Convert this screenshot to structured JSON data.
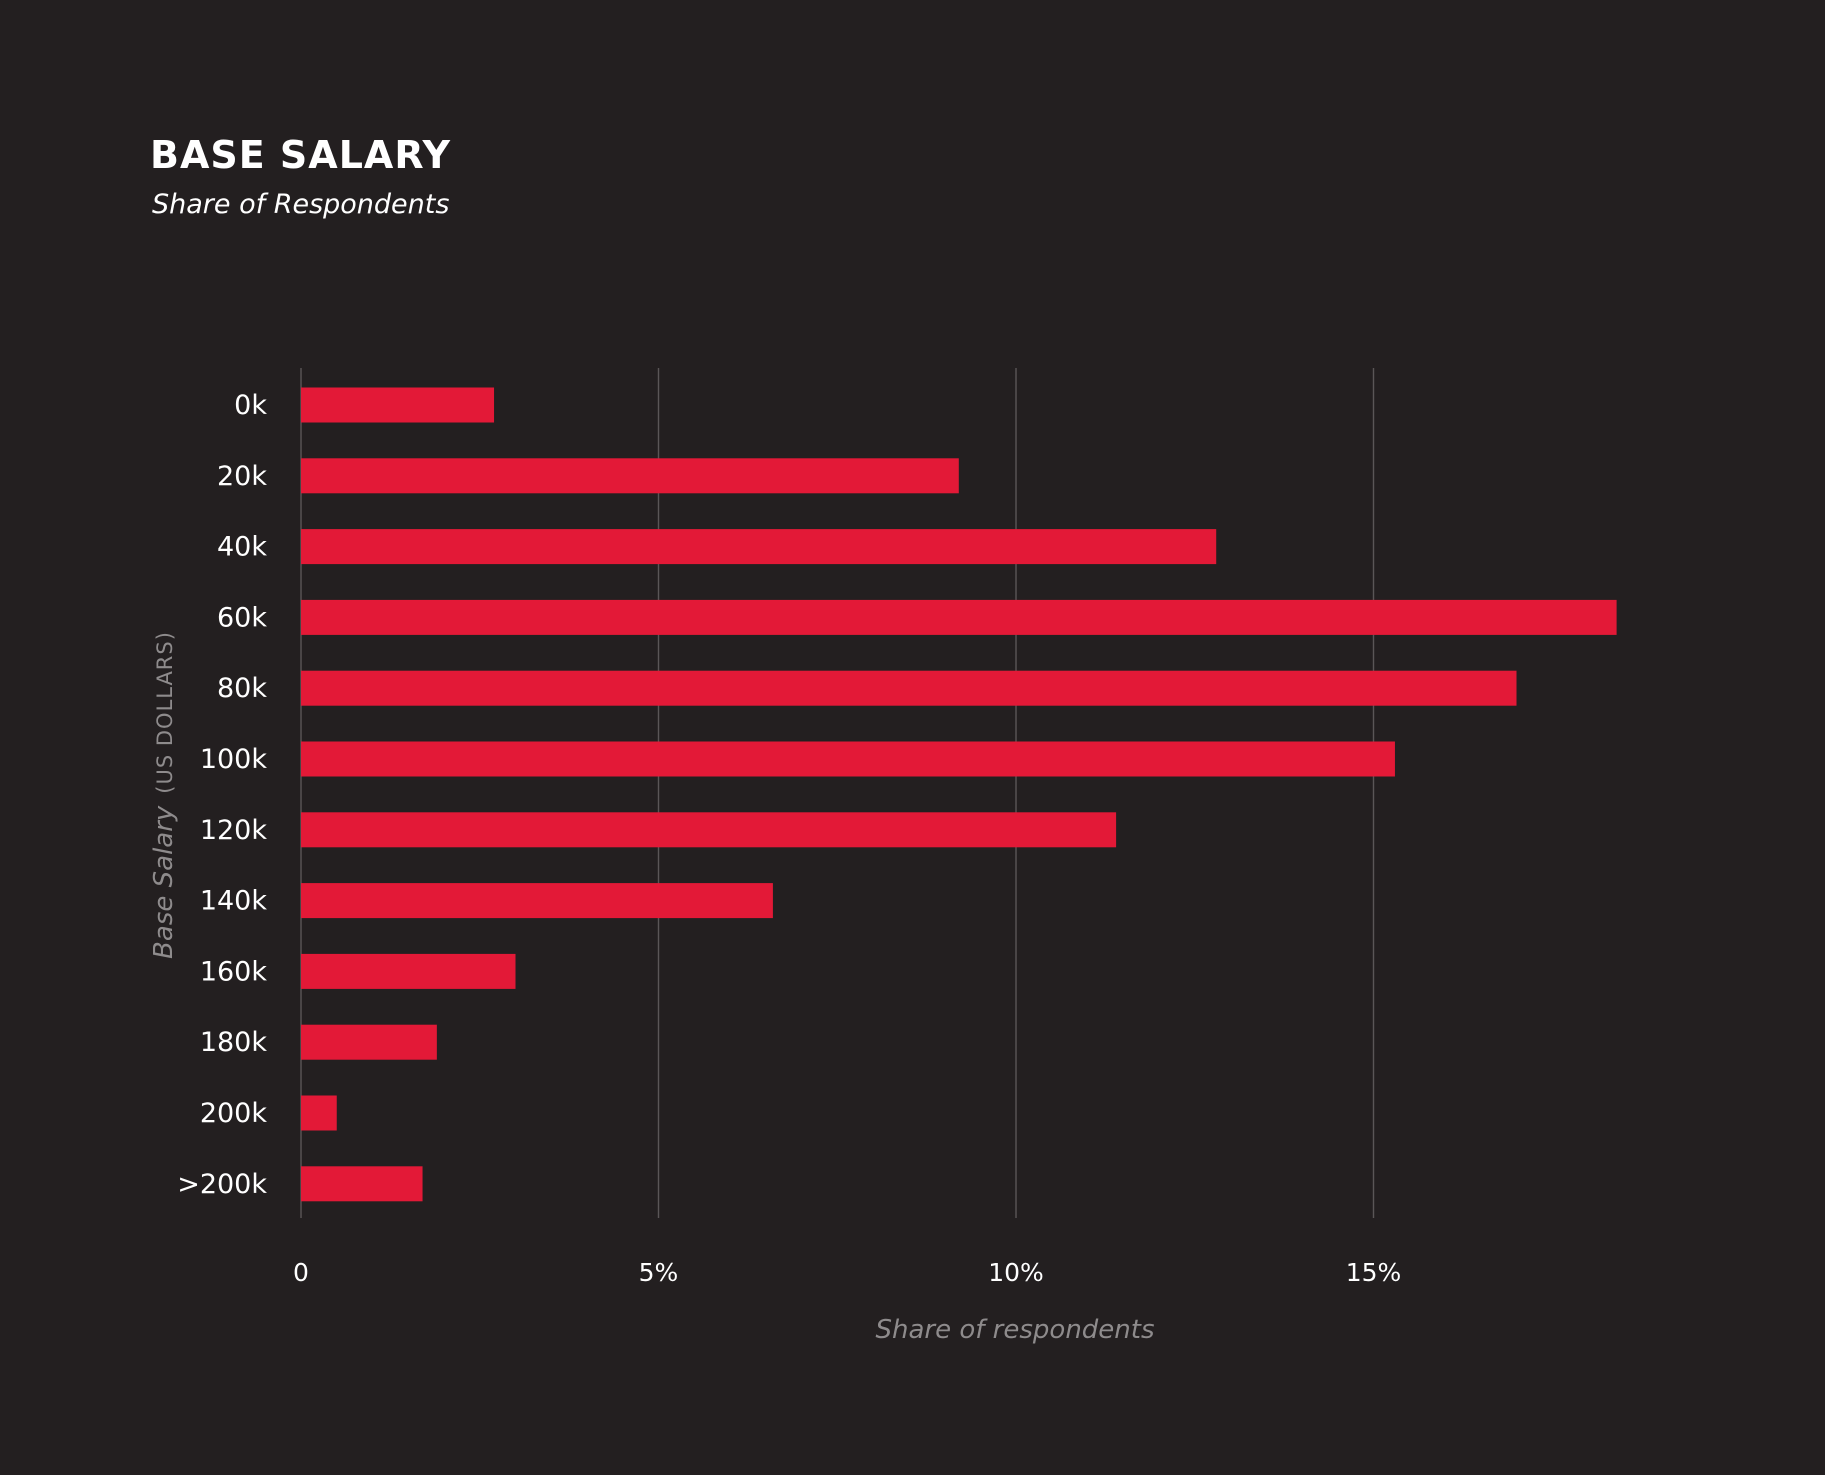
{
  "chart_data": {
    "type": "bar",
    "orientation": "horizontal",
    "title": "BASE SALARY",
    "subtitle": "Share of Respondents",
    "xlabel": "Share of respondents",
    "ylabel": "Base Salary",
    "ylabel_unit": "(US DOLLARS)",
    "categories": [
      "0k",
      "20k",
      "40k",
      "60k",
      "80k",
      "100k",
      "120k",
      "140k",
      "160k",
      "180k",
      "200k",
      ">200k"
    ],
    "values": [
      2.7,
      9.2,
      12.8,
      18.4,
      17.0,
      15.3,
      11.4,
      6.6,
      3.0,
      1.9,
      0.5,
      1.7
    ],
    "x_ticks": [
      {
        "value": 0,
        "label": "0"
      },
      {
        "value": 5,
        "label": "5%"
      },
      {
        "value": 10,
        "label": "10%"
      },
      {
        "value": 15,
        "label": "15%"
      }
    ],
    "xlim": [
      0,
      19.5
    ],
    "grid": true,
    "colors": {
      "bar": "#e31937",
      "background": "#231f20"
    }
  }
}
